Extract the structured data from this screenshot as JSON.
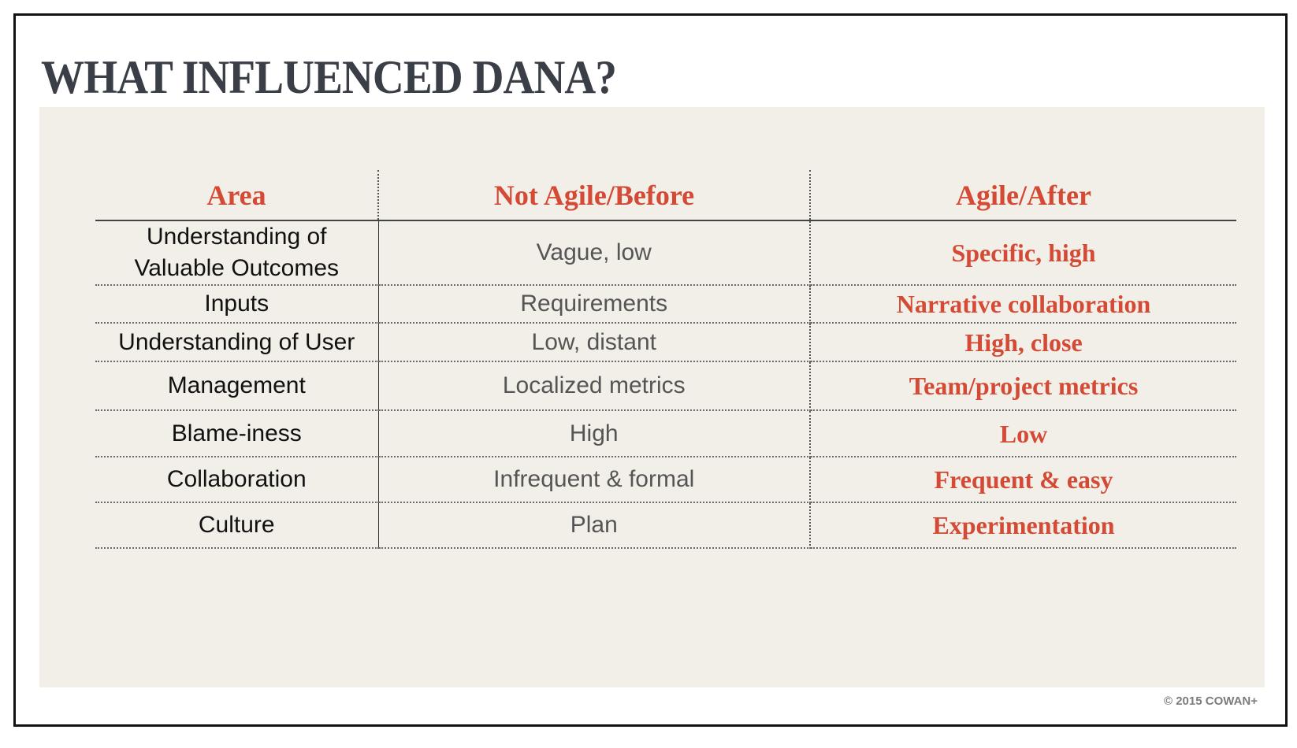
{
  "slide": {
    "title": "WHAT INFLUENCED DANA?",
    "copyright": "© 2015 COWAN+"
  },
  "table": {
    "headers": [
      "Area",
      "Not Agile/Before",
      "Agile/After"
    ],
    "rows": [
      {
        "area": "Understanding of Valuable Outcomes",
        "before": "Vague, low",
        "after": "Specific, high"
      },
      {
        "area": "Inputs",
        "before": "Requirements",
        "after": "Narrative collaboration"
      },
      {
        "area": "Understanding of User",
        "before": "Low, distant",
        "after": "High, close"
      },
      {
        "area": "Management",
        "before": "Localized metrics",
        "after": "Team/project metrics"
      },
      {
        "area": "Blame-iness",
        "before": "High",
        "after": "Low"
      },
      {
        "area": "Collaboration",
        "before": "Infrequent & formal",
        "after": "Frequent & easy"
      },
      {
        "area": "Culture",
        "before": "Plan",
        "after": "Experimentation"
      }
    ]
  },
  "colors": {
    "accent": "#d44a34",
    "title": "#3a3e47",
    "panel": "#f2efe8"
  }
}
